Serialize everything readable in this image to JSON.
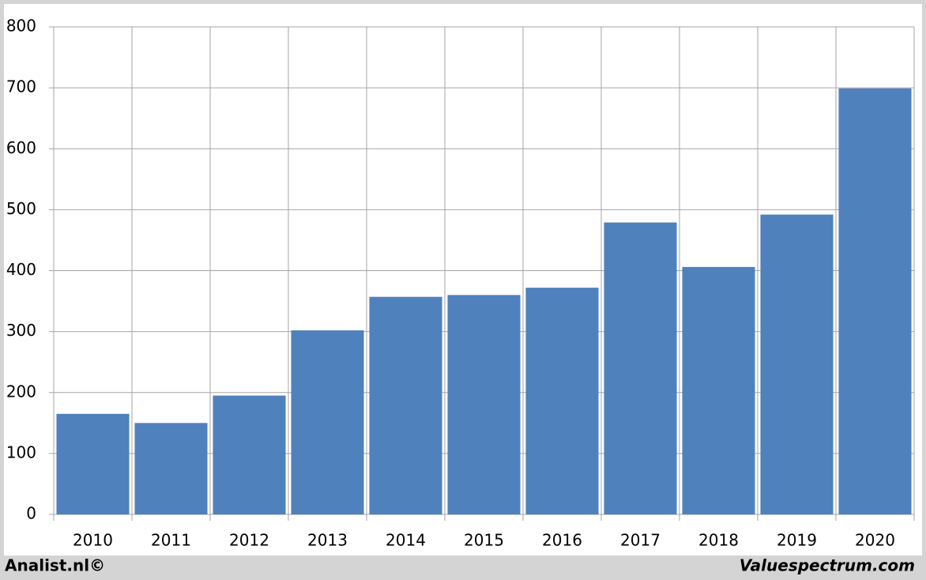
{
  "chart_data": {
    "type": "bar",
    "categories": [
      "2010",
      "2011",
      "2012",
      "2013",
      "2014",
      "2015",
      "2016",
      "2017",
      "2018",
      "2019",
      "2020"
    ],
    "values": [
      165,
      150,
      195,
      302,
      357,
      360,
      372,
      479,
      406,
      492,
      699
    ],
    "color": "#4f81bd",
    "ylim": [
      0,
      800
    ],
    "yticks": [
      0,
      100,
      200,
      300,
      400,
      500,
      600,
      700,
      800
    ],
    "grid": true,
    "annotations": [
      "Analist.nl©",
      "Valuespectrum.com"
    ]
  }
}
